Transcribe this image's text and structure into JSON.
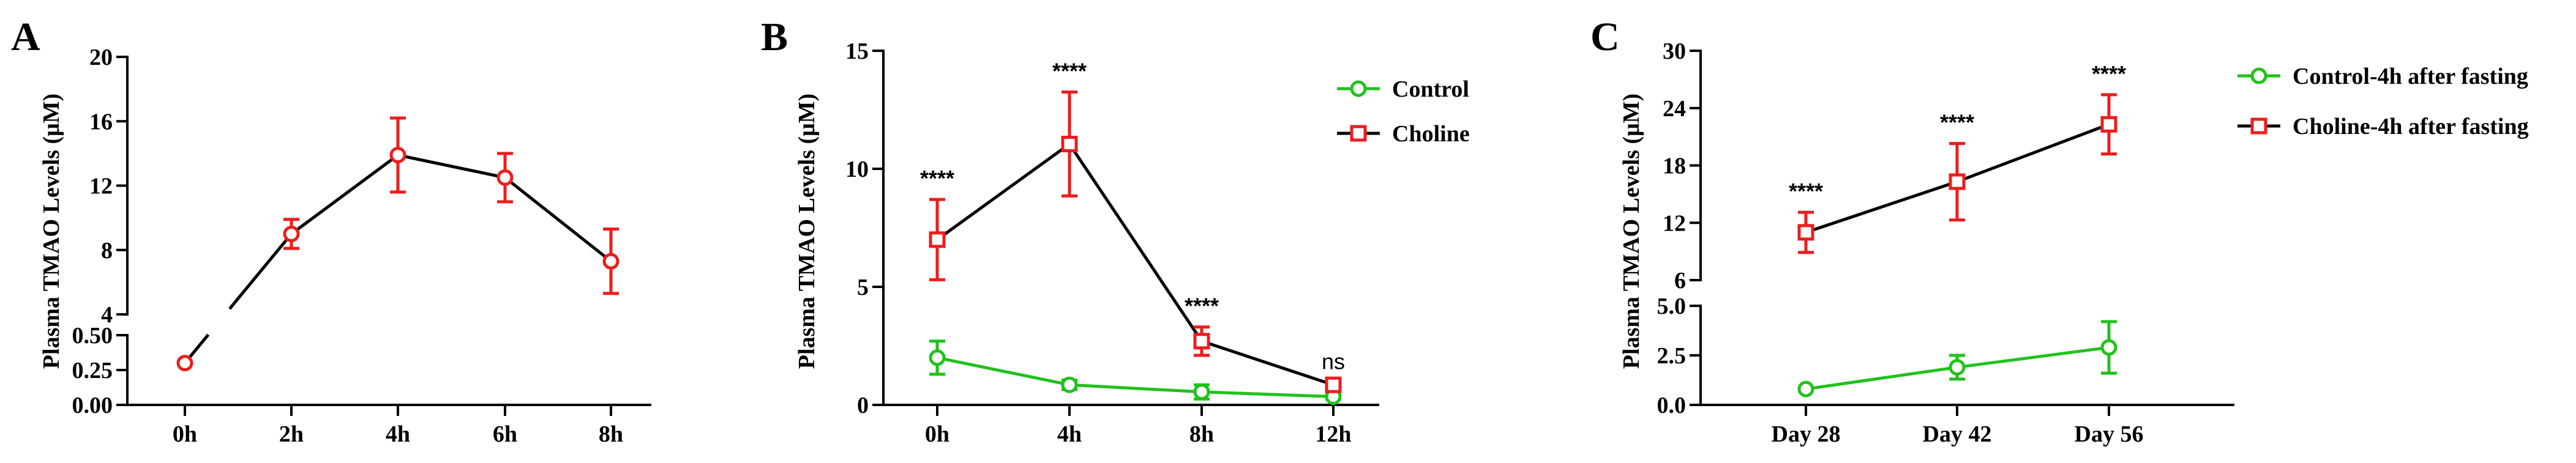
{
  "colors": {
    "control": "#22c11d",
    "choline": "#ee1c1c",
    "line": "#000000",
    "axis": "#000000"
  },
  "chart_data": [
    {
      "panel": "A",
      "type": "line",
      "ylabel": "Plasma TMAO Levels (μM)",
      "xlabel": "",
      "categories": [
        "0h",
        "2h",
        "4h",
        "6h",
        "8h"
      ],
      "y_axis_segments": [
        {
          "range": [
            0,
            0.5
          ],
          "ticks": [
            "0.00",
            "0.25",
            "0.50"
          ]
        },
        {
          "range": [
            4,
            20
          ],
          "ticks": [
            "4",
            "8",
            "12",
            "16",
            "20"
          ]
        }
      ],
      "series": [
        {
          "name": "TMAO",
          "color": "#ee1c1c",
          "marker": "circle",
          "values": [
            0.3,
            9.0,
            13.9,
            12.5,
            7.3
          ],
          "errors": [
            0.0,
            0.9,
            2.3,
            1.5,
            2.0
          ]
        }
      ]
    },
    {
      "panel": "B",
      "type": "line",
      "ylabel": "Plasma TMAO Levels (μM)",
      "xlabel": "",
      "categories": [
        "0h",
        "4h",
        "8h",
        "12h"
      ],
      "y_axis_segments": [
        {
          "range": [
            0,
            15
          ],
          "ticks": [
            "0",
            "5",
            "10",
            "15"
          ]
        }
      ],
      "legend": {
        "position": "top-right",
        "entries": [
          "Control",
          "Choline"
        ]
      },
      "series": [
        {
          "name": "Control",
          "color": "#22c11d",
          "marker": "circle",
          "values": [
            2.0,
            0.85,
            0.55,
            0.35
          ],
          "errors": [
            0.7,
            0.2,
            0.3,
            0.1
          ]
        },
        {
          "name": "Choline",
          "color": "#ee1c1c",
          "marker": "square",
          "values": [
            7.0,
            11.05,
            2.7,
            0.85
          ],
          "errors": [
            1.7,
            2.2,
            0.6,
            0.1
          ]
        }
      ],
      "annotations": [
        "****",
        "****",
        "****",
        "ns"
      ]
    },
    {
      "panel": "C",
      "type": "line",
      "ylabel": "Plasma TMAO Levels (μM)",
      "xlabel": "",
      "categories": [
        "Day 28",
        "Day 42",
        "Day 56"
      ],
      "y_axis_segments": [
        {
          "range": [
            0,
            5
          ],
          "ticks": [
            "0.0",
            "2.5",
            "5.0"
          ]
        },
        {
          "range": [
            6,
            30
          ],
          "ticks": [
            "6",
            "12",
            "18",
            "24",
            "30"
          ]
        }
      ],
      "legend": {
        "position": "top-right",
        "entries": [
          "Control-4h after fasting",
          "Choline-4h after fasting"
        ]
      },
      "series": [
        {
          "name": "Control-4h after fasting",
          "color": "#22c11d",
          "marker": "circle",
          "values": [
            0.8,
            1.9,
            2.9
          ],
          "errors": [
            0.0,
            0.6,
            1.3
          ]
        },
        {
          "name": "Choline-4h after fasting",
          "color": "#ee1c1c",
          "marker": "square",
          "values": [
            11.0,
            16.3,
            22.3
          ],
          "errors": [
            2.1,
            4.0,
            3.1
          ]
        }
      ],
      "annotations": [
        "****",
        "****",
        "****"
      ]
    }
  ]
}
